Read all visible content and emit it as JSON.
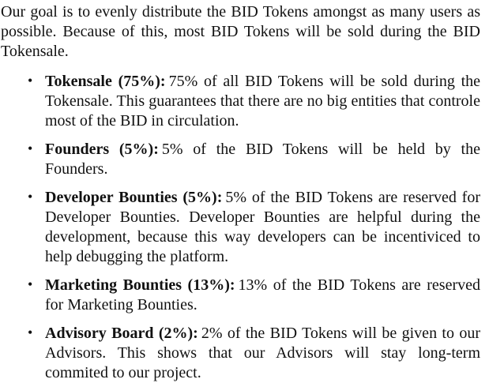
{
  "page": {
    "background_color": "#ffffff",
    "text_color": "#111111"
  },
  "list": {
    "marker_glyph": "•"
  },
  "intro": "Our goal is to evenly distribute the BID Tokens amongst as many users as possible. Because of this, most BID Tokens will be sold during the BID Tokensale.",
  "bullets": [
    {
      "label": "Tokensale (75%):",
      "text": "75% of all BID Tokens will be sold during the Tokensale. This guarantees that there are no big entities that controle most of the BID in circulation."
    },
    {
      "label": "Founders (5%):",
      "text": "5% of the BID Tokens will be held by the Founders."
    },
    {
      "label": "Developer Bounties (5%):",
      "text": "5% of the BID Tokens are reserved for Developer Bounties. Developer Bounties are helpful during the development, because this way developers can be incentiviced to help debugging the platform."
    },
    {
      "label": "Marketing Bounties (13%):",
      "text": "13% of the BID Tokens are reserved for Marketing Bounties."
    },
    {
      "label": "Advisory Board (2%):",
      "text": "2% of the BID Tokens will be given to our Advisors. This shows that our Advisors will stay long-term commited to our project."
    }
  ]
}
